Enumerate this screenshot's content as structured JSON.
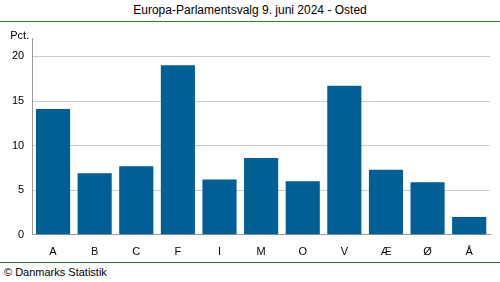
{
  "chart_data": {
    "type": "bar",
    "title": "Europa-Parlamentsvalg 9. juni 2024 - Osted",
    "y_label": "Pct.",
    "source": "© Danmarks Statistik",
    "categories": [
      "A",
      "B",
      "C",
      "F",
      "I",
      "M",
      "O",
      "V",
      "Æ",
      "Ø",
      "Å"
    ],
    "values": [
      14.1,
      6.9,
      7.7,
      19.0,
      6.2,
      8.6,
      6.0,
      16.7,
      7.3,
      5.9,
      2.0
    ],
    "color": "#005f94",
    "ylim": [
      0,
      22
    ],
    "yticks": [
      0,
      5,
      10,
      15,
      20
    ],
    "grid": true
  }
}
